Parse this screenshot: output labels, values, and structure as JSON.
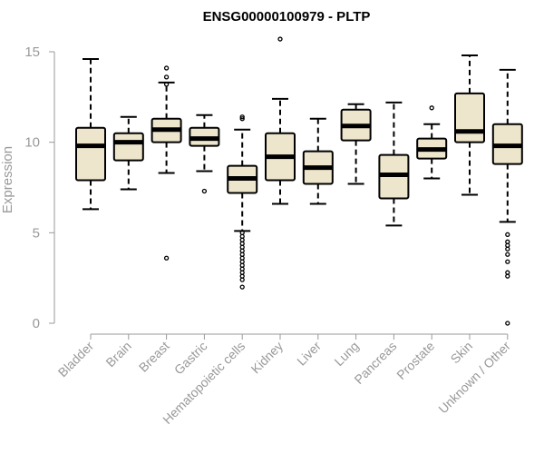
{
  "chart_data": {
    "type": "boxplot",
    "title": "ENSG00000100979 - PLTP",
    "ylabel": "Expression",
    "ylim": [
      0,
      15
    ],
    "yticks": [
      0,
      5,
      10,
      15
    ],
    "box_fill": "#EDE6CC",
    "categories": [
      "Bladder",
      "Brain",
      "Breast",
      "Gastric",
      "Hematopoietic cells",
      "Kidney",
      "Liver",
      "Lung",
      "Pancreas",
      "Prostate",
      "Skin",
      "Unknown / Other"
    ],
    "boxes": [
      {
        "whisker_low": 6.3,
        "q1": 7.9,
        "median": 9.8,
        "q3": 10.8,
        "whisker_high": 14.6,
        "outliers": []
      },
      {
        "whisker_low": 7.4,
        "q1": 9.0,
        "median": 10.0,
        "q3": 10.5,
        "whisker_high": 11.4,
        "outliers": []
      },
      {
        "whisker_low": 8.3,
        "q1": 10.0,
        "median": 10.7,
        "q3": 11.3,
        "whisker_high": 13.3,
        "outliers": [
          3.6,
          13.2,
          13.6,
          14.1
        ]
      },
      {
        "whisker_low": 8.4,
        "q1": 9.8,
        "median": 10.2,
        "q3": 10.8,
        "whisker_high": 11.5,
        "outliers": [
          7.3
        ]
      },
      {
        "whisker_low": 5.1,
        "q1": 7.2,
        "median": 8.0,
        "q3": 8.7,
        "whisker_high": 10.7,
        "outliers": [
          11.3,
          11.4,
          2.0,
          2.4,
          2.6,
          2.8,
          3.0,
          3.2,
          3.4,
          3.6,
          3.8,
          4.0,
          4.2,
          4.4,
          4.6,
          4.8,
          5.0
        ]
      },
      {
        "whisker_low": 6.6,
        "q1": 7.9,
        "median": 9.2,
        "q3": 10.5,
        "whisker_high": 12.4,
        "outliers": [
          15.7
        ]
      },
      {
        "whisker_low": 6.6,
        "q1": 7.7,
        "median": 8.6,
        "q3": 9.5,
        "whisker_high": 11.3,
        "outliers": []
      },
      {
        "whisker_low": 7.7,
        "q1": 10.1,
        "median": 10.9,
        "q3": 11.8,
        "whisker_high": 12.1,
        "outliers": []
      },
      {
        "whisker_low": 5.4,
        "q1": 6.9,
        "median": 8.2,
        "q3": 9.3,
        "whisker_high": 12.2,
        "outliers": []
      },
      {
        "whisker_low": 8.0,
        "q1": 9.1,
        "median": 9.6,
        "q3": 10.2,
        "whisker_high": 11.0,
        "outliers": [
          11.9
        ]
      },
      {
        "whisker_low": 7.1,
        "q1": 10.0,
        "median": 10.6,
        "q3": 12.7,
        "whisker_high": 14.8,
        "outliers": []
      },
      {
        "whisker_low": 5.6,
        "q1": 8.8,
        "median": 9.8,
        "q3": 11.0,
        "whisker_high": 14.0,
        "outliers": [
          0.0,
          2.6,
          2.8,
          3.4,
          3.8,
          4.1,
          4.3,
          4.5,
          4.9
        ]
      }
    ]
  }
}
